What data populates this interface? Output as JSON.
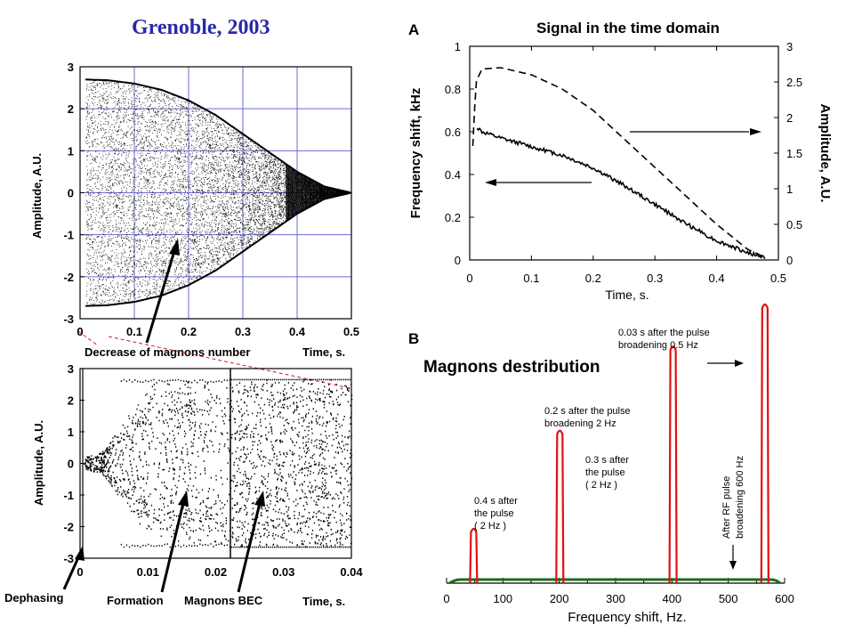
{
  "page_title": "Grenoble, 2003",
  "chart_data": [
    {
      "id": "top-left",
      "type": "scatter",
      "xlabel": "Time, s.",
      "ylabel": "Amplitude, A.U.",
      "xlim": [
        0,
        0.5
      ],
      "ylim": [
        -3,
        3
      ],
      "xticks": [
        "0",
        "0.1",
        "0.2",
        "0.3",
        "0.4",
        "0.5"
      ],
      "yticks": [
        "3",
        "2",
        "1",
        "0",
        "-1",
        "-2",
        "-3"
      ],
      "grid": true,
      "envelope": {
        "t": [
          0,
          0.05,
          0.1,
          0.15,
          0.2,
          0.25,
          0.3,
          0.35,
          0.4,
          0.45,
          0.5
        ],
        "amp": [
          2.7,
          2.68,
          2.6,
          2.45,
          2.2,
          1.85,
          1.4,
          0.95,
          0.5,
          0.15,
          0.0
        ]
      },
      "annotation": "Decrease of magnons number"
    },
    {
      "id": "bottom-left",
      "type": "scatter",
      "xlabel": "Time, s.",
      "ylabel": "Amplitude, A.U.",
      "xlim": [
        0,
        0.04
      ],
      "ylim": [
        -3,
        3
      ],
      "xticks": [
        "0",
        "0.01",
        "0.02",
        "0.03",
        "0.04"
      ],
      "yticks": [
        "3",
        "2",
        "1",
        "0",
        "-1",
        "-2",
        "-3"
      ],
      "grid": false,
      "annotations": [
        "Dephasing",
        "Formation",
        "Magnons BEC"
      ]
    },
    {
      "id": "A",
      "panel_label": "A",
      "type": "line",
      "title": "Signal in the time domain",
      "xlabel": "Time, s.",
      "ylabel": "Frequency shift, kHz",
      "ylabel_right": "Amplitude, A.U.",
      "xlim": [
        0,
        0.5
      ],
      "ylim": [
        0,
        1
      ],
      "ylim_right": [
        0,
        3
      ],
      "xticks": [
        "0",
        "0.1",
        "0.2",
        "0.3",
        "0.4",
        "0.5"
      ],
      "yticks": [
        "1",
        "0.8",
        "0.6",
        "0.4",
        "0.2",
        "0"
      ],
      "yticks_right": [
        "3",
        "2.5",
        "2",
        "1.5",
        "1",
        "0.5",
        "0"
      ],
      "series": [
        {
          "style": "solid",
          "x": [
            0.012,
            0.02,
            0.05,
            0.1,
            0.15,
            0.2,
            0.25,
            0.3,
            0.35,
            0.4,
            0.45,
            0.48
          ],
          "y": [
            0.62,
            0.6,
            0.57,
            0.53,
            0.49,
            0.43,
            0.35,
            0.26,
            0.17,
            0.09,
            0.035,
            0.01
          ]
        },
        {
          "style": "dashed",
          "axis": "right",
          "x": [
            0.005,
            0.01,
            0.02,
            0.05,
            0.1,
            0.15,
            0.2,
            0.25,
            0.3,
            0.35,
            0.4,
            0.45,
            0.48
          ],
          "y": [
            1.6,
            2.5,
            2.68,
            2.7,
            2.6,
            2.4,
            2.1,
            1.7,
            1.3,
            0.9,
            0.5,
            0.15,
            0.03
          ]
        }
      ]
    },
    {
      "id": "B",
      "panel_label": "B",
      "type": "line",
      "title": "Magnons destribution",
      "xlabel": "Frequency shift, Hz.",
      "xlim": [
        0,
        600
      ],
      "xticks": [
        "0",
        "100",
        "200",
        "300",
        "400",
        "500",
        "600"
      ],
      "peaks": [
        {
          "center": 48,
          "height": 0.2,
          "label_lines": [
            "0.4 s after",
            "the pulse",
            "( 2 Hz )"
          ]
        },
        {
          "center": 201,
          "height": 0.55,
          "label_lines": [
            "0.2 s after the pulse",
            "broadening 2 Hz"
          ]
        },
        {
          "center": 402,
          "height": 0.85,
          "label_lines": [
            "0.3 s after",
            "the pulse",
            "( 2 Hz )"
          ]
        },
        {
          "center": 565,
          "height": 1.0,
          "label_lines": [
            "0.03 s after the pulse",
            "broadening 0.5 Hz"
          ]
        }
      ],
      "broad_label_lines": [
        "After RF pulse",
        "broadening 600 Hz"
      ],
      "colors": {
        "peaks": "#e01010",
        "broad": "#1e6b1e"
      }
    }
  ]
}
